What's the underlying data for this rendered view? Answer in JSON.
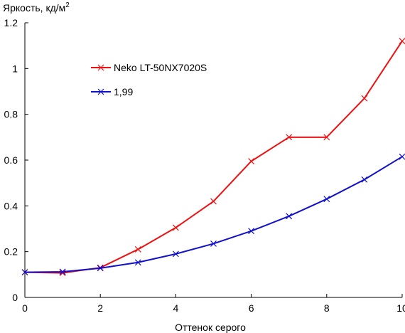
{
  "chart_data": {
    "type": "line",
    "xlabel": "Оттенок серого",
    "ylabel": "Яркость, кд/м",
    "ylabel_superscript": "2",
    "xlim": [
      0,
      10
    ],
    "ylim": [
      0,
      1.2
    ],
    "xticks": [
      0,
      2,
      4,
      6,
      8,
      10
    ],
    "xtick_labels": [
      "0",
      "2",
      "4",
      "6",
      "8",
      "10"
    ],
    "yticks": [
      0,
      0.2,
      0.4,
      0.6,
      0.8,
      1,
      1.2
    ],
    "ytick_labels": [
      "0",
      "0.2",
      "0.4",
      "0.6",
      "0.8",
      "1",
      "1.2"
    ],
    "grid": false,
    "legend_position": "upper-left",
    "x": [
      0,
      1,
      2,
      3,
      4,
      5,
      6,
      7,
      8,
      9,
      10
    ],
    "series": [
      {
        "name": "Neko LT-50NX7020S",
        "color": "#ee1111",
        "marker": "x",
        "values": [
          0.11,
          0.107,
          0.13,
          0.21,
          0.305,
          0.42,
          0.595,
          0.7,
          0.7,
          0.87,
          1.12
        ]
      },
      {
        "name": "1,99",
        "color": "#1111cc",
        "marker": "x",
        "values": [
          0.11,
          0.112,
          0.128,
          0.153,
          0.19,
          0.235,
          0.29,
          0.355,
          0.43,
          0.515,
          0.615
        ]
      }
    ]
  }
}
